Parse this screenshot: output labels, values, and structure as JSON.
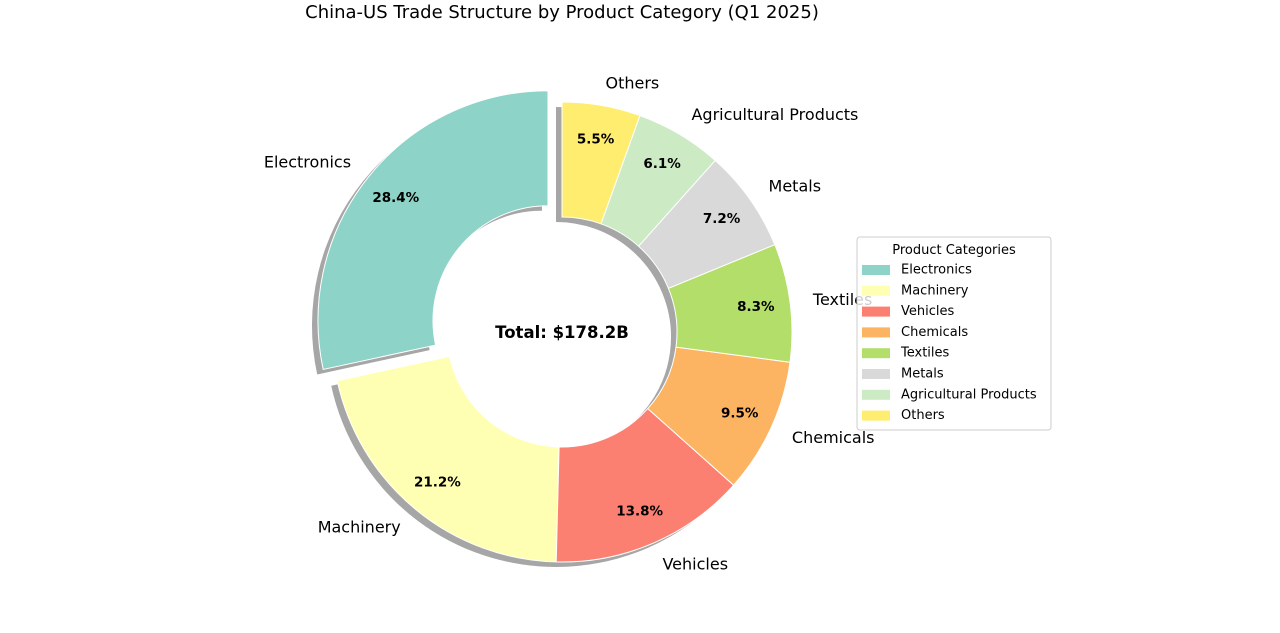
{
  "chart_data": {
    "type": "pie",
    "subtype": "donut",
    "title": "China-US Trade Structure by Product Category (Q1 2025)",
    "center_label": "Total: $178.2B",
    "start_angle_deg": 90,
    "direction": "counterclockwise",
    "exploded": [
      "Electronics"
    ],
    "shadow": true,
    "legend": {
      "title": "Product Categories",
      "placement": "right"
    },
    "slices": [
      {
        "label": "Electronics",
        "value": 28.4,
        "pct_label": "28.4%",
        "color": "#8dd3c7"
      },
      {
        "label": "Machinery",
        "value": 21.2,
        "pct_label": "21.2%",
        "color": "#ffffb3"
      },
      {
        "label": "Vehicles",
        "value": 13.8,
        "pct_label": "13.8%",
        "color": "#fb8072"
      },
      {
        "label": "Chemicals",
        "value": 9.5,
        "pct_label": "9.5%",
        "color": "#fdb462"
      },
      {
        "label": "Textiles",
        "value": 8.3,
        "pct_label": "8.3%",
        "color": "#b3de69"
      },
      {
        "label": "Metals",
        "value": 7.2,
        "pct_label": "7.2%",
        "color": "#d9d9d9"
      },
      {
        "label": "Agricultural Products",
        "value": 6.1,
        "pct_label": "6.1%",
        "color": "#ccebc5"
      },
      {
        "label": "Others",
        "value": 5.5,
        "pct_label": "5.5%",
        "color": "#ffed6f"
      }
    ]
  }
}
